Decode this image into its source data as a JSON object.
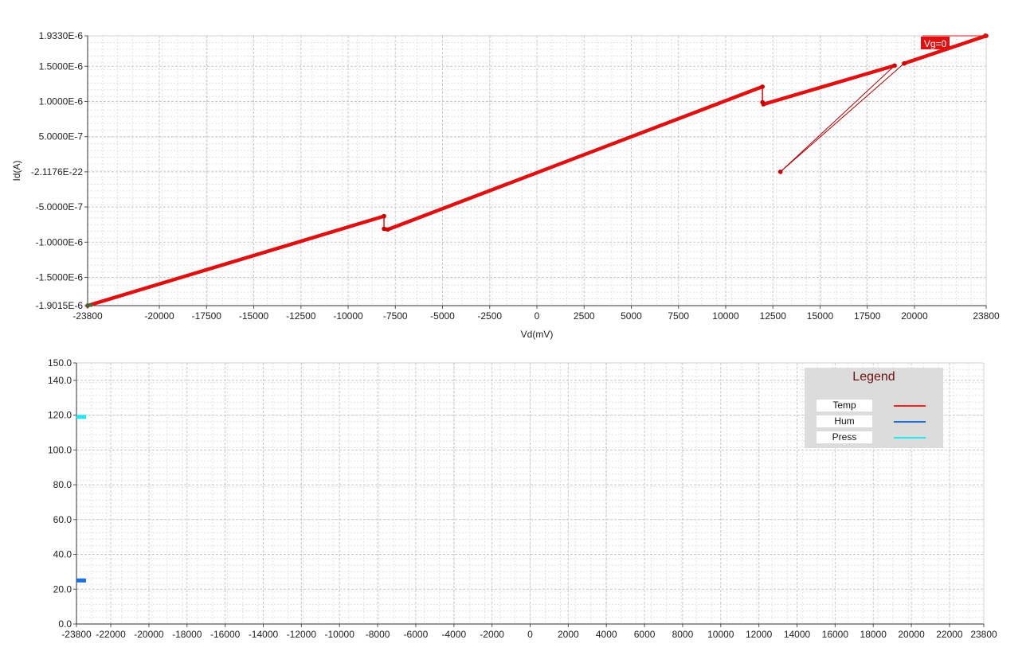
{
  "chart_data": [
    {
      "type": "line",
      "xlabel": "Vd(mV)",
      "ylabel": "Id(A)",
      "xlim": [
        -23800,
        23800
      ],
      "ylim": [
        -1.9015e-06,
        1.933e-06
      ],
      "x_ticks": [
        "-23800",
        "-20000",
        "-17500",
        "-15000",
        "-12500",
        "-10000",
        "-7500",
        "-5000",
        "-2500",
        "0",
        "2500",
        "5000",
        "7500",
        "10000",
        "12500",
        "15000",
        "17500",
        "20000",
        "23800"
      ],
      "y_ticks": [
        "1.9330E-6",
        "1.5000E-6",
        "1.0000E-6",
        "5.0000E-7",
        "-2.1176E-22",
        "-5.0000E-7",
        "-1.0000E-6",
        "-1.5000E-6",
        "-1.9015E-6"
      ],
      "grid": true,
      "series": [
        {
          "name": "Vg=0",
          "color": "#e01010",
          "x": [
            -23800,
            -8100,
            -8100,
            -7900,
            11950,
            11950,
            12000,
            18950,
            12900,
            19450,
            23800
          ],
          "y": [
            -1.9015e-06,
            -6.3e-07,
            -8.1e-07,
            -8.2e-07,
            1.21e-06,
            9.9e-07,
            9.6e-07,
            1.51e-06,
            -2.1176e-22,
            1.54e-06,
            1.933e-06
          ]
        }
      ],
      "annotations": [
        {
          "text": "Vg=0",
          "x": 23800,
          "y": 1.933e-06,
          "color": "#e01010"
        }
      ]
    },
    {
      "type": "line",
      "xlabel": "",
      "ylabel": "",
      "xlim": [
        -23800,
        23800
      ],
      "ylim": [
        0,
        150
      ],
      "x_ticks": [
        "-23800",
        "-22000",
        "-20000",
        "-18000",
        "-16000",
        "-14000",
        "-12000",
        "-10000",
        "-8000",
        "-6000",
        "-4000",
        "-2000",
        "0",
        "2000",
        "4000",
        "6000",
        "8000",
        "10000",
        "12000",
        "14000",
        "16000",
        "18000",
        "20000",
        "22000",
        "23800"
      ],
      "y_ticks": [
        "150.0",
        "140.0",
        "120.0",
        "100.0",
        "80.0",
        "60.0",
        "40.0",
        "20.0",
        "0.0"
      ],
      "grid": true,
      "legend": {
        "title": "Legend",
        "placement": "top-right"
      },
      "series": [
        {
          "name": "Temp",
          "color": "#ff2020",
          "x": [],
          "y": []
        },
        {
          "name": "Hum",
          "color": "#1e6fe0",
          "x": [
            -23800,
            -23300
          ],
          "y": [
            25,
            25
          ]
        },
        {
          "name": "Press",
          "color": "#22e8f0",
          "x": [
            -23800,
            -23300
          ],
          "y": [
            119,
            119
          ]
        }
      ]
    }
  ]
}
